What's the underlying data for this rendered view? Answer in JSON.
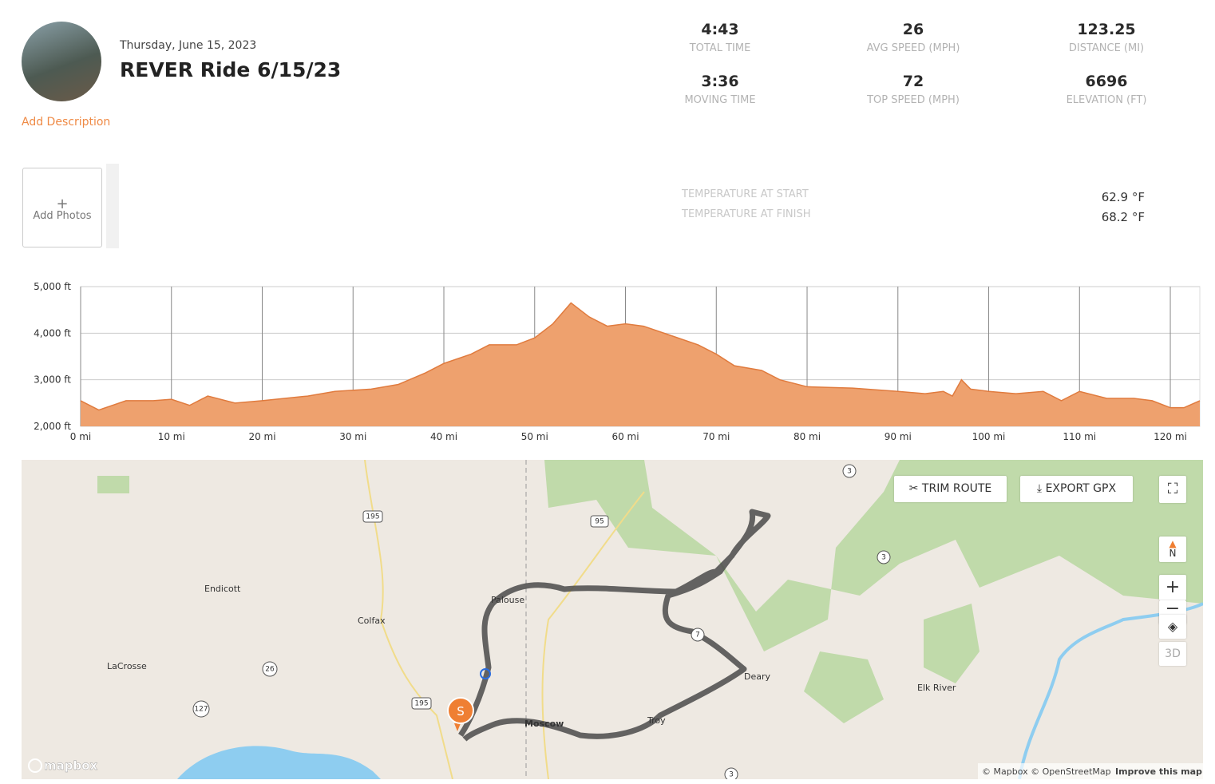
{
  "header": {
    "date": "Thursday, June 15, 2023",
    "title": "REVER Ride 6/15/23",
    "add_description": "Add Description"
  },
  "stats": [
    {
      "value": "4:43",
      "label": "TOTAL TIME"
    },
    {
      "value": 26,
      "label": "AVG SPEED (MPH)"
    },
    {
      "value": 123.25,
      "label": "DISTANCE (MI)"
    },
    {
      "value": "3:36",
      "label": "MOVING TIME"
    },
    {
      "value": 72,
      "label": "TOP SPEED (MPH)"
    },
    {
      "value": 6696,
      "label": "ELEVATION (FT)"
    }
  ],
  "photos": {
    "add": "Add Photos"
  },
  "temperatures": [
    {
      "label": "TEMPERATURE AT START",
      "value": "62.9 °F"
    },
    {
      "label": "TEMPERATURE AT FINISH",
      "value": "68.2 °F"
    }
  ],
  "chart_data": {
    "type": "area",
    "color": "#eea16e",
    "line_color": "#e07b3e",
    "x": [
      0,
      2,
      5,
      8,
      10,
      12,
      14,
      17,
      20,
      25,
      28,
      32,
      35,
      38,
      40,
      43,
      45,
      48,
      50,
      52,
      54,
      56,
      58,
      60,
      62,
      65,
      68,
      70,
      72,
      75,
      77,
      80,
      85,
      90,
      93,
      95,
      96,
      97,
      98,
      100,
      103,
      106,
      108,
      110,
      113,
      116,
      118,
      120,
      121.5,
      123.25
    ],
    "values": [
      2550,
      2350,
      2550,
      2550,
      2580,
      2450,
      2650,
      2500,
      2550,
      2650,
      2750,
      2800,
      2900,
      3150,
      3350,
      3550,
      3750,
      3750,
      3900,
      4200,
      4650,
      4350,
      4150,
      4200,
      4150,
      3950,
      3750,
      3550,
      3300,
      3200,
      3000,
      2850,
      2820,
      2750,
      2700,
      2750,
      2650,
      3000,
      2800,
      2750,
      2700,
      2750,
      2550,
      2750,
      2600,
      2600,
      2550,
      2400,
      2400,
      2550
    ],
    "xlim": [
      0,
      123.25
    ],
    "ylim": [
      2000,
      5000
    ],
    "xticks": [
      {
        "value": 0,
        "label": "0 mi"
      },
      {
        "value": 10,
        "label": "10 mi"
      },
      {
        "value": 20,
        "label": "20 mi"
      },
      {
        "value": 30,
        "label": "30 mi"
      },
      {
        "value": 40,
        "label": "40 mi"
      },
      {
        "value": 50,
        "label": "50 mi"
      },
      {
        "value": 60,
        "label": "60 mi"
      },
      {
        "value": 70,
        "label": "70 mi"
      },
      {
        "value": 80,
        "label": "80 mi"
      },
      {
        "value": 90,
        "label": "90 mi"
      },
      {
        "value": 100,
        "label": "100 mi"
      },
      {
        "value": 110,
        "label": "110 mi"
      },
      {
        "value": 120,
        "label": "120 mi"
      }
    ],
    "yticks": [
      {
        "value": 2000,
        "label": "2,000 ft"
      },
      {
        "value": 3000,
        "label": "3,000 ft"
      },
      {
        "value": 4000,
        "label": "4,000 ft"
      },
      {
        "value": 5000,
        "label": "5,000 ft"
      }
    ],
    "grid": true
  },
  "map": {
    "trim": "TRIM ROUTE",
    "export": "EXPORT GPX",
    "three_d": "3D",
    "north": "N",
    "start": "S",
    "logo": "mapbox",
    "attribution": "© Mapbox © OpenStreetMap",
    "improve": "Improve this map",
    "places": [
      "Endicott",
      "Colfax",
      "LaCrosse",
      "Palouse",
      "Moscow",
      "Troy",
      "Deary",
      "Elk River"
    ],
    "shields": [
      "195",
      "95",
      "3",
      "3",
      "26",
      "127",
      "195",
      "7",
      "3"
    ]
  }
}
